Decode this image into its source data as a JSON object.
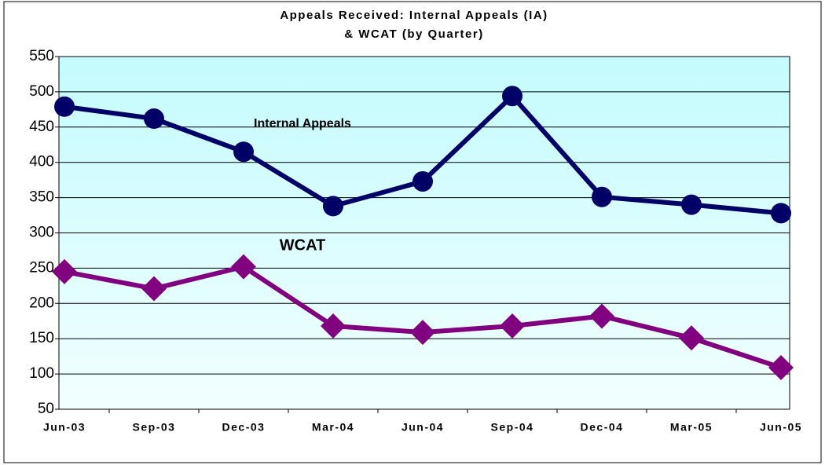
{
  "chart_data": {
    "type": "line",
    "title": [
      "Appeals Received: Internal Appeals (IA)",
      "& WCAT (by Quarter)"
    ],
    "categories": [
      "Jun-03",
      "Sep-03",
      "Dec-03",
      "Mar-04",
      "Jun-04",
      "Sep-04",
      "Dec-04",
      "Mar-05",
      "Jun-05"
    ],
    "series": [
      {
        "name": "Internal Appeals",
        "color": "#000066",
        "marker": "circle",
        "values": [
          479,
          462,
          415,
          338,
          373,
          494,
          351,
          340,
          328
        ]
      },
      {
        "name": "WCAT",
        "color": "#800080",
        "marker": "diamond",
        "values": [
          245,
          221,
          252,
          168,
          159,
          168,
          182,
          151,
          109
        ]
      }
    ],
    "ylim": [
      50,
      550
    ],
    "yticks": [
      50,
      100,
      150,
      200,
      250,
      300,
      350,
      400,
      450,
      500,
      550
    ],
    "grid": true
  }
}
